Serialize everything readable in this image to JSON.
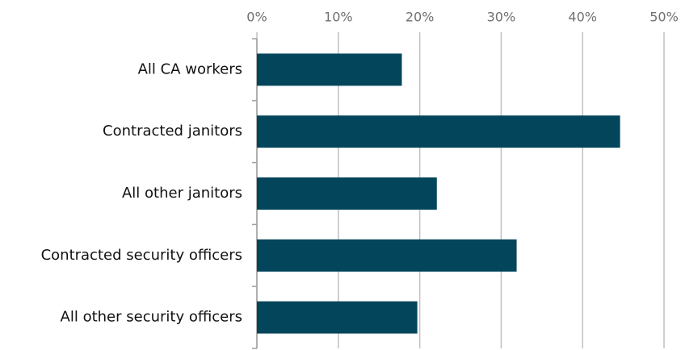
{
  "chart_data": {
    "type": "bar",
    "orientation": "horizontal",
    "categories": [
      "All CA workers",
      "Contracted janitors",
      "All other janitors",
      "Contracted security officers",
      "All other security officers"
    ],
    "values": [
      17.8,
      44.6,
      22.1,
      31.9,
      19.7
    ],
    "color": "#03455a",
    "xlim": [
      0,
      50
    ],
    "xticks": [
      {
        "value": 0,
        "label": "0%"
      },
      {
        "value": 10,
        "label": "10%"
      },
      {
        "value": 20,
        "label": "20%"
      },
      {
        "value": 30,
        "label": "30%"
      },
      {
        "value": 40,
        "label": "40%"
      },
      {
        "value": 50,
        "label": "50%"
      }
    ],
    "grid": true
  }
}
